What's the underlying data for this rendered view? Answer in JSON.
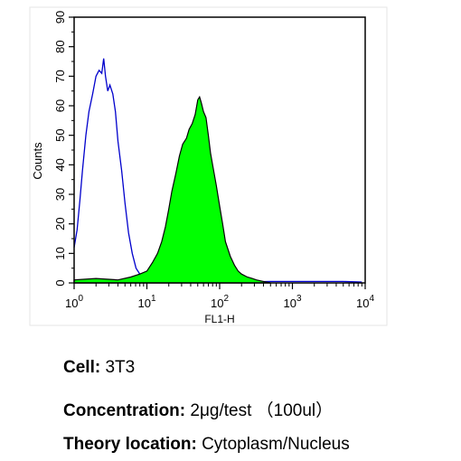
{
  "chart_data": {
    "type": "area",
    "title": "",
    "xlabel": "FL1-H",
    "ylabel": "Counts",
    "xscale": "log",
    "xlim": [
      1,
      10000
    ],
    "ylim": [
      0,
      90
    ],
    "grid": false,
    "legend": "none",
    "x_ticks": [
      {
        "value": 1,
        "base": "10",
        "exp": "0"
      },
      {
        "value": 10,
        "base": "10",
        "exp": "1"
      },
      {
        "value": 100,
        "base": "10",
        "exp": "2"
      },
      {
        "value": 1000,
        "base": "10",
        "exp": "3"
      },
      {
        "value": 10000,
        "base": "10",
        "exp": "4"
      }
    ],
    "y_ticks": [
      "0",
      "10",
      "20",
      "30",
      "40",
      "50",
      "60",
      "70",
      "80",
      "90"
    ],
    "series": [
      {
        "style": "outline",
        "color": "#0000cc",
        "x": [
          1.0,
          1.1,
          1.2,
          1.3,
          1.45,
          1.6,
          1.8,
          2.0,
          2.2,
          2.4,
          2.55,
          2.7,
          2.9,
          3.1,
          3.4,
          3.7,
          4.0,
          4.5,
          5.0,
          5.6,
          6.3,
          7.1,
          8.0,
          9.0,
          10.0,
          11.0,
          13.0,
          16.0,
          20.0,
          30.0,
          50.0,
          100.0,
          200.0,
          500.0,
          1000.0,
          2000.0,
          5000.0,
          9000.0
        ],
        "y": [
          12,
          18,
          28,
          38,
          50,
          58,
          64,
          70,
          72,
          71,
          76,
          70,
          65,
          67,
          64,
          58,
          48,
          38,
          27,
          17,
          10,
          5,
          3,
          1.5,
          1,
          0.8,
          0.5,
          0.3,
          0.3,
          0.3,
          0.3,
          0.3,
          0.3,
          0.5,
          0.5,
          0.5,
          0.5,
          0.3
        ]
      },
      {
        "style": "filled",
        "color": "#00ff00",
        "x": [
          1.0,
          2.0,
          4.0,
          6.0,
          8.0,
          10.0,
          12.0,
          14.0,
          16.0,
          18.0,
          20.0,
          22.0,
          25.0,
          28.0,
          31.0,
          35.0,
          38.0,
          42.0,
          46.0,
          50.0,
          53.0,
          56.0,
          60.0,
          65.0,
          70.0,
          75.0,
          80.0,
          90.0,
          100.0,
          110.0,
          120.0,
          140.0,
          160.0,
          180.0,
          200.0,
          240.0,
          280.0,
          320.0,
          400.0,
          500.0
        ],
        "y": [
          1,
          1.5,
          1,
          2,
          3,
          4,
          7,
          10,
          14,
          19,
          25,
          31,
          37,
          43,
          47,
          49,
          52,
          54,
          57,
          62,
          63,
          61,
          58,
          56,
          50,
          44,
          40,
          33,
          26,
          20,
          14,
          9,
          6,
          4,
          3,
          2,
          1.5,
          1,
          0.5,
          0
        ]
      }
    ]
  },
  "caption": {
    "cell_label": "Cell:",
    "cell_value": "3T3",
    "concentration_label": "Concentration:",
    "concentration_value": "2μg/test （100ul）",
    "location_label": "Theory location:",
    "location_value": "Cytoplasm/Nucleus"
  }
}
